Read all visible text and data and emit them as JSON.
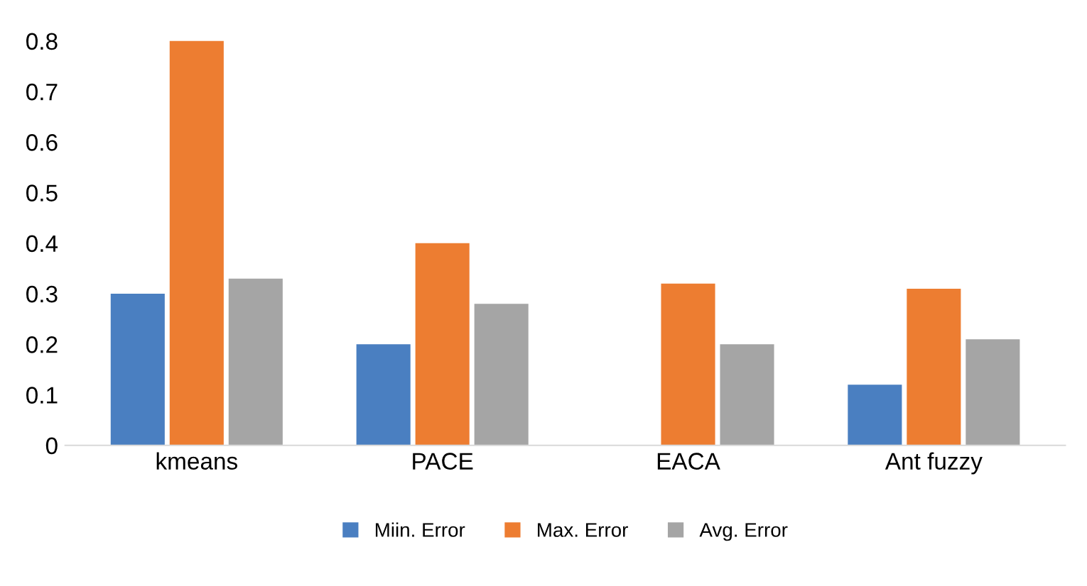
{
  "chart_data": {
    "type": "bar",
    "categories": [
      "kmeans",
      "PACE",
      "EACA",
      "Ant fuzzy"
    ],
    "series": [
      {
        "name": "Miin. Error",
        "color": "#4a7fc1",
        "values": [
          0.3,
          0.2,
          0,
          0.12
        ]
      },
      {
        "name": "Max. Error",
        "color": "#ed7d31",
        "values": [
          0.8,
          0.4,
          0.32,
          0.31
        ]
      },
      {
        "name": "Avg. Error",
        "color": "#a5a5a5",
        "values": [
          0.33,
          0.28,
          0.2,
          0.21
        ]
      }
    ],
    "ylim": [
      0,
      0.8
    ],
    "yticks": [
      0,
      0.1,
      0.2,
      0.3,
      0.4,
      0.5,
      0.6,
      0.7,
      0.8
    ],
    "grid": false,
    "legend": "bottom"
  }
}
